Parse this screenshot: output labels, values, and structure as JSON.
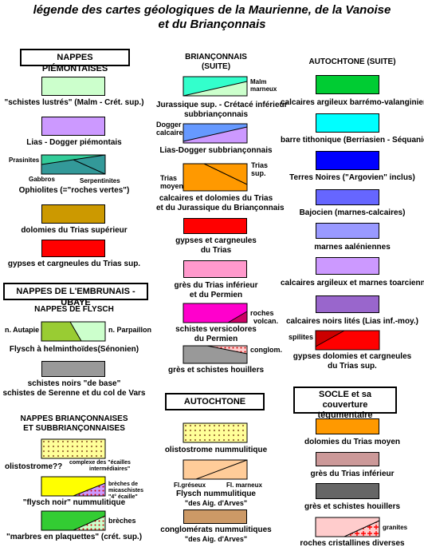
{
  "title": {
    "line1": "légende des cartes géologiques  de la Maurienne, de la Vanoise",
    "line2": "et du Briançonnais"
  },
  "col1": {
    "header_piemont": "NAPPES PIÉMONTAISES",
    "schistes_lustres": "\"schistes lustrés\" (Malm - Crét. sup.)",
    "lias_dogger_piem": "Lias - Dogger piémontais",
    "prasinites": "Prasinites",
    "gabbros": "Gabbros",
    "serpentinites": "Serpentinites",
    "ophiolites": "Ophiolites (=\"roches vertes\")",
    "dolomies_trias_sup": "dolomies du Trias supérieur",
    "gypses_trias_sup": "gypses et cargneules  du Trias sup.",
    "header_embrunais": "NAPPES DE L'EMBRUNAIS - UBAYE",
    "header_flysch": "NAPPES DE FLYSCH",
    "n_autapie": "n. Autapie",
    "n_parpaillon": "n. Parpaillon",
    "flysch_helm": "Flysch à helminthoïdes(Sénonien)",
    "schistes_noirs_1": "schistes noirs \"de base\"",
    "schistes_noirs_2": "schistes de Serenne et du col de Vars",
    "header_nb_1": "NAPPES BRIANÇONNAISES",
    "header_nb_2": "ET SUBBRIANÇONNAISES",
    "olistostrome": "olistostrome??",
    "complexe_1": "complexe des \"écailles",
    "complexe_2": "intermédiaires\"",
    "breches_mica_1": "brèches de",
    "breches_mica_2": "micaschistes",
    "breches_mica_3": "\"4° écaille\"",
    "flysch_noir": "\"flysch noir\"  nummulitique",
    "breches": "brèches",
    "marbres": "\"marbres en plaquettes\" (crét. sup.)"
  },
  "col2": {
    "header_1": "BRIANÇONNAIS",
    "header_2": "(SUITE)",
    "malm_1": "Malm",
    "malm_2": "marneux",
    "jurassique_1": "Jurassique sup. - Crétacé inférieur",
    "jurassique_2": "subbriançonnais",
    "dogger_1": "Dogger",
    "dogger_2": "calcaire",
    "lias_dogger_sub": "Lias-Dogger subbriançonnais",
    "trias_moyen_1": "Trias",
    "trias_moyen_2": "moyen",
    "trias_sup_1": "Trias",
    "trias_sup_2": "sup.",
    "calcaires_dolomies_1": "calcaires et dolomies du Trias",
    "calcaires_dolomies_2": "et du Jurassique  du  Briançonnais",
    "gypses_1": "gypses et cargneules",
    "gypses_2": "du Trias",
    "gres_trias_1": "grès  du  Trias inférieur",
    "gres_trias_2": "et du Permien",
    "roches_volcan_1": "roches",
    "roches_volcan_2": "volcan.",
    "schistes_versi_1": "schistes versicolores",
    "schistes_versi_2": "du Permien",
    "conglom": "conglom.",
    "gres_schistes_houillers": "grès et schistes houillers",
    "header_autochtone": "AUTOCHTONE",
    "olisto_numm": "olistostrome nummulitique",
    "fl_greseux": "Fl.gréseux",
    "fl_marneux": "Fl. marneux",
    "flysch_numm_1": "Flysch  nummulitique",
    "flysch_numm_2": "\"des Aig. d'Arves\"",
    "conglomerats_1": "conglomérats nummulitiques",
    "conglomerats_2": "\"des Aig. d'Arves\""
  },
  "col3": {
    "header": "AUTOCHTONE (SUITE)",
    "calc_barremo": "calcaires  argileux  barrémo-valanginiens",
    "barre_titho": "barre tithonique (Berriasien - Séquanien)",
    "terres_noires": "Terres Noires (\"Argovien\" inclus)",
    "bajocien": "Bajocien (marnes-calcaires)",
    "marnes_aaleniennes": "marnes aaléniennes",
    "calc_toarciennes": "calcaires argileux et marnes toarciennes",
    "calc_noirs_lites": "calcaires noirs lités (Lias inf.-moy.)",
    "spilites": "spilites",
    "gypses_dol_1": "gypses dolomies et cargneules",
    "gypses_dol_2": "du Trias sup.",
    "header_socle_1": "SOCLE et sa",
    "header_socle_2": "couverture tégumentaire",
    "dol_trias_moyen": "dolomies  du Trias moyen",
    "gres_trias_inf": "grès  du Trias inférieur",
    "gres_schistes_houillers": "grès et schistes houillers",
    "granites": "granites",
    "roches_cristallines": "roches cristallines diverses"
  },
  "colors": {
    "pale_green": "#ccffcc",
    "lavender": "#cc99ff",
    "teal": "#33cc99",
    "dark_teal": "#339999",
    "ochre": "#cc9900",
    "red": "#ff0000",
    "aqua": "#33ffcc",
    "light_blue": "#6699ff",
    "orange": "#ff9900",
    "pink": "#ff99cc",
    "magenta": "#ff00cc",
    "grey": "#999999",
    "light_yellow": "#ffff99",
    "lime": "#99cc33",
    "yellow": "#ffff00",
    "green": "#33cc33",
    "peach": "#ffcc99",
    "brown_tan": "#cc9966",
    "bright_green": "#00cc33",
    "cyan": "#00ffff",
    "blue": "#0000ff",
    "periwinkle": "#6666ff",
    "lilac": "#9999ff",
    "light_lilac": "#cc99ff",
    "violet": "#9966cc",
    "dark_red": "#cc0000",
    "mauve": "#cc9999",
    "dark_grey": "#666666",
    "rose": "#ffcccc"
  }
}
